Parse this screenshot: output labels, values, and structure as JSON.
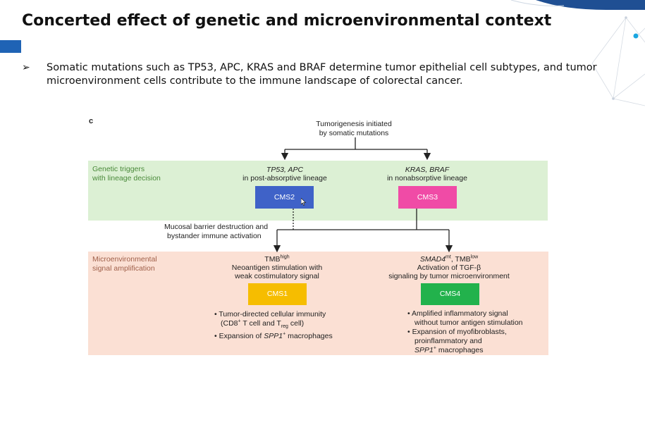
{
  "slide": {
    "title": "Concerted effect of genetic and microenvironmental context",
    "bullet": "Somatic mutations such as TP53, APC, KRAS and BRAF determine tumor epithelial cell subtypes, and tumor microenvironment cells contribute to the immune landscape of colorectal cancer.",
    "bullet_icon": "arrowhead-bullet-icon"
  },
  "figure": {
    "panel_label": "c",
    "root_line1": "Tumorigenesis initiated",
    "root_line2": "by somatic mutations",
    "genetic_band_line1": "Genetic triggers",
    "genetic_band_line2": "with lineage decision",
    "micro_band_line1": "Microenvironmental",
    "micro_band_line2": "signal amplification",
    "left_trigger_genes": "TP53, APC",
    "left_trigger_desc": "in post-absorptive lineage",
    "right_trigger_genes": "KRAS, BRAF",
    "right_trigger_desc": "in nonabsorptive lineage",
    "cms2": "CMS2",
    "cms3": "CMS3",
    "cms1": "CMS1",
    "cms4": "CMS4",
    "mucosal_line1": "Mucosal barrier destruction and",
    "mucosal_line2": "bystander immune activation",
    "tmb_high_base": "TMB",
    "tmb_high_sup": "high",
    "cms1_desc1": "Neoantigen stimulation with",
    "cms1_desc2": "weak costimulatory signal",
    "smad4": "SMAD4",
    "smad4_sup": "mt",
    "tmb_low_base": ", TMB",
    "tmb_low_sup": "low",
    "cms4_desc1": "Activation of TGF-β",
    "cms4_desc2": "signaling by tumor microenvironment",
    "cms1_b1_line1": "• Tumor-directed cellular immunity",
    "cms1_b1_l2_a": "(CD8",
    "cms1_b1_l2_sup": "+",
    "cms1_b1_l2_b": " T cell and T",
    "cms1_b1_l2_sub": "reg",
    "cms1_b1_l2_c": " cell)",
    "cms1_b2_a": "• Expansion of ",
    "cms1_b2_italic": "SPP1",
    "cms1_b2_sup": "+",
    "cms1_b2_b": " macrophages",
    "cms4_b1_line1": "• Amplified inflammatory signal",
    "cms4_b1_line2": "without tumor antigen stimulation",
    "cms4_b2_line1": "• Expansion of myofibroblasts,",
    "cms4_b2_line2": "proinflammatory and",
    "cms4_b2_italic": "SPP1",
    "cms4_b2_sup": "+",
    "cms4_b2_tail": " macrophages"
  },
  "colors": {
    "genetic_band": "#dcf0d4",
    "micro_band": "#fbe0d4",
    "cms2": "#3f62c8",
    "cms3": "#f04ba6",
    "cms1": "#f6bd00",
    "cms4": "#22b24c",
    "accent": "#1f63b5"
  },
  "cursor_icon": "mouse-pointer-icon"
}
